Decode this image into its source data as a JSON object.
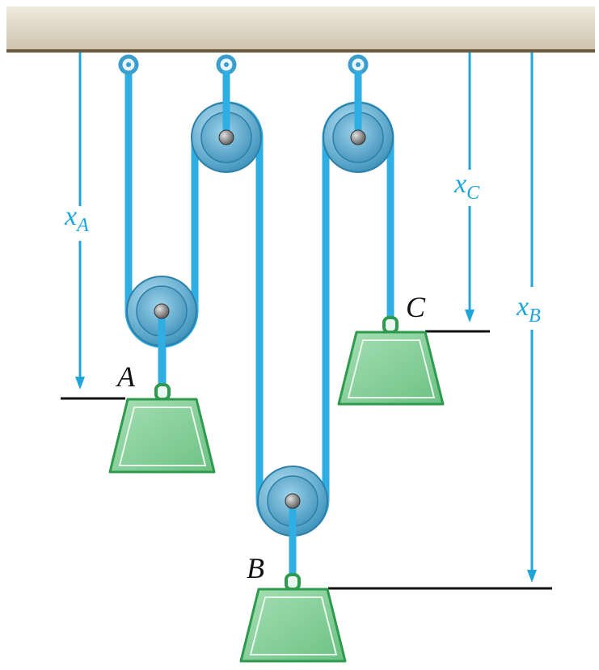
{
  "labels": {
    "xA": {
      "main": "x",
      "sub": "A"
    },
    "xB": {
      "main": "x",
      "sub": "B"
    },
    "xC": {
      "main": "x",
      "sub": "C"
    },
    "massA": "A",
    "massB": "B",
    "massC": "C"
  },
  "colors": {
    "cord": "#2eaee3",
    "dimension": "#1fa5d9",
    "ceiling_light": "#ece6d8",
    "ceiling_dark": "#c9bfa8",
    "ceiling_edge": "#6b5a3c",
    "pulley_outer": "#8fc6dd",
    "pulley_inner": "#3f9bc6",
    "mass_fill": "#8fd4a0",
    "mass_edge": "#2e9a4e",
    "ref_line": "#111111"
  },
  "icons": {
    "pulley": "pulley-icon",
    "mass": "weight-icon",
    "anchor": "eyelet-icon"
  }
}
